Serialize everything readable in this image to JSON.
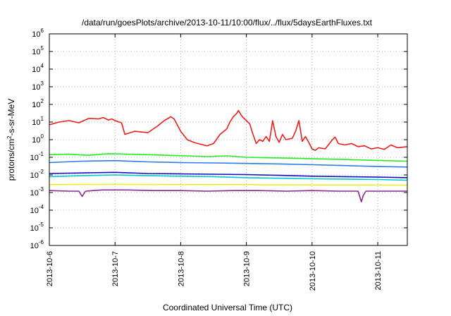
{
  "chart_data": {
    "type": "line",
    "title": "/data/run/goesPlots/archive/2013-10-11/10:00/flux/../flux/5daysEarthFluxes.txt",
    "xlabel": "Coordinated Universal Time (UTC)",
    "ylabel_html": "protons/cm<tspan baseline-shift=\"super\" font-size=\"8\">2</tspan>-s-sr-MeV",
    "ylabel": "protons/cm2-s-sr-MeV",
    "yscale": "log",
    "ylim_exp": [
      -6,
      6
    ],
    "xlim": [
      0,
      5.45
    ],
    "grid": true,
    "x_ticks": [
      {
        "x": 0,
        "label": "2013-10-6"
      },
      {
        "x": 1,
        "label": "2013-10-7"
      },
      {
        "x": 2,
        "label": "2013-10-8"
      },
      {
        "x": 3,
        "label": "2013-10-9"
      },
      {
        "x": 4,
        "label": "2013-10-10"
      },
      {
        "x": 5,
        "label": "2013-10-11"
      }
    ],
    "y_ticks": [
      {
        "exp": -6,
        "base": "10",
        "power": "-6"
      },
      {
        "exp": -5,
        "base": "10",
        "power": "-5"
      },
      {
        "exp": -4,
        "base": "10",
        "power": "-4"
      },
      {
        "exp": -3,
        "base": "10",
        "power": "-3"
      },
      {
        "exp": -2,
        "base": "10",
        "power": "-2"
      },
      {
        "exp": -1,
        "base": "10",
        "power": "-1"
      },
      {
        "exp": 0,
        "base": "10",
        "power": "0"
      },
      {
        "exp": 1,
        "base": "10",
        "power": "1"
      },
      {
        "exp": 2,
        "base": "10",
        "power": "2"
      },
      {
        "exp": 3,
        "base": "10",
        "power": "3"
      },
      {
        "exp": 4,
        "base": "10",
        "power": "4"
      },
      {
        "exp": 5,
        "base": "10",
        "power": "5"
      },
      {
        "exp": 6,
        "base": "10",
        "power": "6"
      }
    ],
    "series": [
      {
        "color": "#ee1c1c",
        "x": [
          0,
          0.15,
          0.3,
          0.45,
          0.6,
          0.75,
          0.82,
          0.9,
          0.95,
          1.0,
          1.1,
          1.15,
          1.3,
          1.5,
          1.65,
          1.75,
          1.85,
          1.9,
          2.0,
          2.1,
          2.2,
          2.3,
          2.4,
          2.5,
          2.6,
          2.7,
          2.75,
          2.8,
          2.85,
          2.88,
          2.92,
          2.95,
          3.0,
          3.05,
          3.1,
          3.15,
          3.2,
          3.25,
          3.3,
          3.35,
          3.4,
          3.45,
          3.5,
          3.55,
          3.6,
          3.7,
          3.75,
          3.8,
          3.85,
          3.9,
          3.95,
          4.0,
          4.05,
          4.1,
          4.2,
          4.3,
          4.35,
          4.4,
          4.5,
          4.6,
          4.7,
          4.8,
          4.9,
          5.0,
          5.1,
          5.2,
          5.3,
          5.45
        ],
        "y": [
          7,
          10,
          12,
          9,
          16,
          15,
          18,
          13,
          15,
          12,
          9,
          2,
          3,
          2.5,
          6,
          12,
          20,
          15,
          3,
          1,
          0.7,
          0.55,
          0.45,
          0.6,
          2,
          4,
          10,
          20,
          30,
          45,
          25,
          18,
          12,
          8,
          2,
          0.6,
          1,
          0.8,
          1.5,
          0.8,
          12,
          1.5,
          0.7,
          2,
          1,
          1.2,
          3,
          12,
          0.8,
          1.5,
          0.7,
          0.3,
          0.25,
          0.35,
          0.3,
          0.9,
          1.4,
          0.6,
          0.5,
          0.6,
          0.4,
          0.45,
          0.3,
          0.35,
          0.28,
          0.5,
          0.35,
          0.4
        ]
      },
      {
        "color": "#22ee22",
        "x": [
          0,
          0.3,
          0.6,
          0.9,
          1.2,
          1.5,
          1.8,
          2.1,
          2.4,
          2.7,
          3.0,
          3.3,
          3.6,
          3.9,
          4.2,
          4.5,
          4.8,
          5.1,
          5.45
        ],
        "y": [
          0.14,
          0.15,
          0.13,
          0.16,
          0.15,
          0.14,
          0.13,
          0.12,
          0.11,
          0.12,
          0.1,
          0.095,
          0.09,
          0.085,
          0.08,
          0.075,
          0.07,
          0.065,
          0.06
        ]
      },
      {
        "color": "#00c8d0",
        "x": [
          0,
          0.5,
          1.0,
          1.5,
          2.0,
          2.5,
          3.0,
          3.5,
          4.0,
          4.5,
          5.0,
          5.45
        ],
        "y": [
          0.008,
          0.009,
          0.01,
          0.009,
          0.0085,
          0.008,
          0.007,
          0.0065,
          0.006,
          0.0058,
          0.0055,
          0.005
        ]
      },
      {
        "color": "#2a7af0",
        "x": [
          0,
          0.5,
          1.0,
          1.5,
          2.0,
          2.5,
          3.0,
          3.5,
          4.0,
          4.5,
          5.0,
          5.45
        ],
        "y": [
          0.05,
          0.06,
          0.065,
          0.055,
          0.05,
          0.048,
          0.045,
          0.042,
          0.038,
          0.034,
          0.03,
          0.028
        ]
      },
      {
        "color": "#1010c8",
        "x": [
          0,
          0.5,
          1.0,
          1.5,
          2.0,
          2.5,
          3.0,
          3.5,
          4.0,
          4.5,
          5.0,
          5.45
        ],
        "y": [
          0.012,
          0.013,
          0.014,
          0.012,
          0.0115,
          0.011,
          0.0105,
          0.0095,
          0.0085,
          0.008,
          0.0075,
          0.007
        ]
      },
      {
        "color": "#f0f020",
        "x": [
          0,
          1.0,
          2.0,
          3.0,
          4.0,
          5.0,
          5.45
        ],
        "y": [
          0.0028,
          0.0029,
          0.0028,
          0.0028,
          0.0027,
          0.0027,
          0.0026
        ]
      },
      {
        "color": "#8a2a8a",
        "x": [
          0,
          0.3,
          0.45,
          0.5,
          0.55,
          0.8,
          1.2,
          1.6,
          2.0,
          2.4,
          2.8,
          3.2,
          3.6,
          4.0,
          4.4,
          4.7,
          4.75,
          4.78,
          4.82,
          5.1,
          5.45
        ],
        "y": [
          0.0013,
          0.0012,
          0.0012,
          0.0006,
          0.0012,
          0.0014,
          0.0014,
          0.0013,
          0.0013,
          0.0012,
          0.0013,
          0.0013,
          0.0012,
          0.0013,
          0.0012,
          0.0012,
          0.0003,
          0.0007,
          0.0012,
          0.0012,
          0.0012
        ]
      }
    ]
  }
}
